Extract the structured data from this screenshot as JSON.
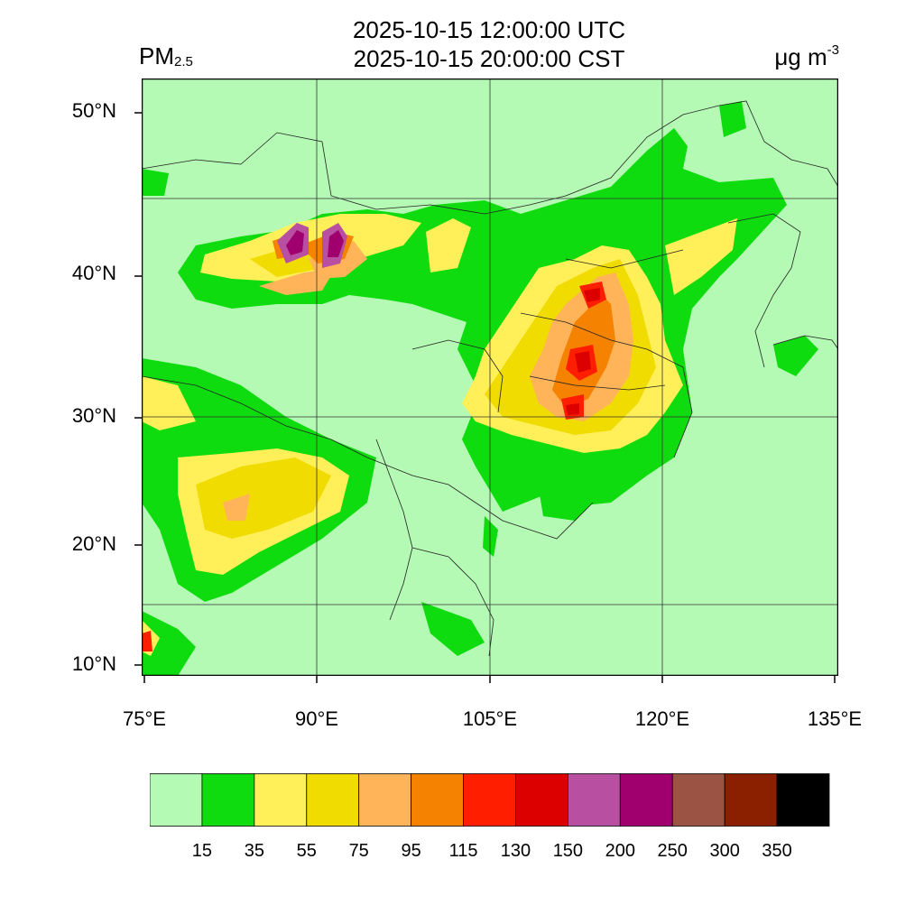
{
  "header": {
    "title_utc": "2025-10-15 12:00:00 UTC",
    "title_cst": "2025-10-15 20:00:00 CST",
    "variable_main": "PM",
    "variable_sub": "2.5",
    "units_main": "μg m",
    "units_sup": "-3"
  },
  "axes": {
    "lat_ticks": [
      {
        "value": 50,
        "label": "50°N"
      },
      {
        "value": 40,
        "label": "40°N"
      },
      {
        "value": 30,
        "label": "30°N"
      },
      {
        "value": 20,
        "label": "20°N"
      },
      {
        "value": 10,
        "label": "10°N"
      }
    ],
    "lon_ticks": [
      {
        "value": 75,
        "label": "75°E"
      },
      {
        "value": 90,
        "label": "90°E"
      },
      {
        "value": 105,
        "label": "105°E"
      },
      {
        "value": 120,
        "label": "120°E"
      },
      {
        "value": 135,
        "label": "135°E"
      }
    ],
    "lon_range": [
      75,
      135
    ],
    "lat_range": [
      9,
      52
    ]
  },
  "legend": {
    "colors": [
      "#b4f9b4",
      "#0fdc0f",
      "#fff05a",
      "#f0dc00",
      "#ffb45a",
      "#f58200",
      "#ff1e00",
      "#dc0000",
      "#b94fa0",
      "#a0006e",
      "#9b5444",
      "#8b2000",
      "#000000"
    ],
    "labels": [
      "15",
      "35",
      "55",
      "75",
      "95",
      "115",
      "130",
      "150",
      "200",
      "250",
      "300",
      "350"
    ]
  }
}
